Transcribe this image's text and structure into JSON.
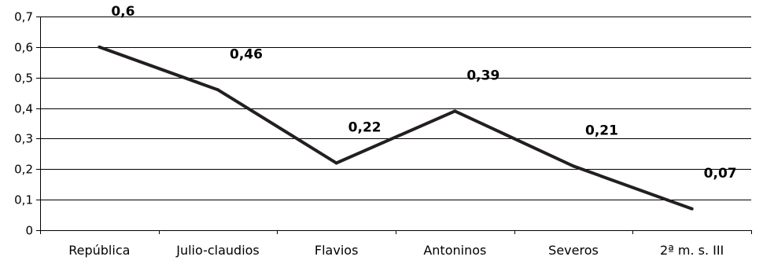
{
  "chart_data": {
    "type": "line",
    "title": "",
    "xlabel": "",
    "ylabel": "",
    "categories": [
      "República",
      "Julio-claudios",
      "Flavios",
      "Antoninos",
      "Severos",
      "2ª m. s. III"
    ],
    "series": [
      {
        "values": [
          0.6,
          0.46,
          0.22,
          0.39,
          0.21,
          0.07
        ],
        "data_labels": [
          "0,6",
          "0,46",
          "0,22",
          "0,39",
          "0,21",
          "0,07"
        ],
        "color": "#231f20"
      }
    ],
    "y_ticks": [
      0,
      0.1,
      0.2,
      0.3,
      0.4,
      0.5,
      0.6,
      0.7
    ],
    "y_tick_labels": [
      "0",
      "0,1",
      "0,2",
      "0,3",
      "0,4",
      "0,5",
      "0,6",
      "0,7"
    ],
    "ylim": [
      0,
      0.7
    ],
    "grid": true,
    "legend": "none"
  }
}
